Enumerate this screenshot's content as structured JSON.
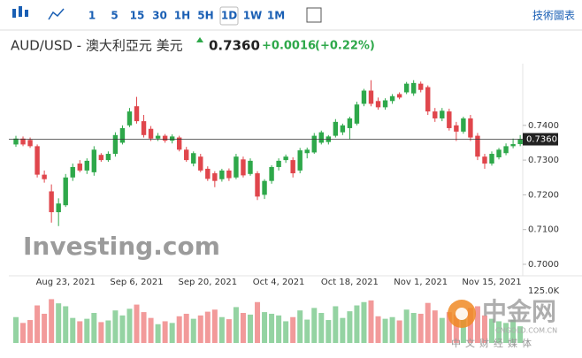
{
  "toolbar": {
    "intervals": [
      "1",
      "5",
      "15",
      "30",
      "1H",
      "5H",
      "1D",
      "1W",
      "1M"
    ],
    "active": "1D",
    "right": "技術圖表"
  },
  "header": {
    "title": "AUD/USD - 澳大利亞元 美元",
    "price": "0.7360",
    "change": "+0.0016",
    "change_pct": "(+0.22%)"
  },
  "watermarks": {
    "logo": "Investing.com",
    "site": "中金网",
    "url": "CNGOLD.COM.CN",
    "tagline": "中文财经媒体"
  },
  "chart_data": {
    "type": "candlestick",
    "up_color": "#2ea84a",
    "down_color": "#e0464c",
    "volume_up_color": "#94d3a2",
    "volume_down_color": "#f29a9a",
    "categories": [
      null,
      null,
      null,
      null,
      null,
      null,
      null,
      "Aug 23, 2021",
      null,
      null,
      null,
      null,
      null,
      null,
      null,
      null,
      null,
      "Sep 6, 2021",
      null,
      null,
      null,
      null,
      null,
      null,
      null,
      null,
      null,
      "Sep 20, 2021",
      null,
      null,
      null,
      null,
      null,
      null,
      null,
      null,
      null,
      "Oct 4, 2021",
      null,
      null,
      null,
      null,
      null,
      null,
      null,
      null,
      null,
      "Oct 18, 2021",
      null,
      null,
      null,
      null,
      null,
      null,
      null,
      null,
      null,
      "Nov 1, 2021",
      null,
      null,
      null,
      null,
      null,
      null,
      null,
      null,
      null,
      "Nov 15, 2021",
      null,
      null,
      null,
      null
    ],
    "open": [
      0.7345,
      0.7362,
      0.7358,
      0.734,
      0.7258,
      0.721,
      0.715,
      0.717,
      0.725,
      0.729,
      0.727,
      0.7265,
      0.7315,
      0.73,
      0.7318,
      0.735,
      0.74,
      0.7455,
      0.7412,
      0.739,
      0.7362,
      0.737,
      0.7356,
      0.7365,
      0.733,
      0.729,
      0.731,
      0.7275,
      0.7262,
      0.7245,
      0.727,
      0.725,
      0.7302,
      0.726,
      0.7262,
      0.72,
      0.724,
      0.728,
      0.73,
      0.73,
      0.727,
      0.732,
      0.7322,
      0.735,
      0.7352,
      0.737,
      0.738,
      0.7392,
      0.7405,
      0.7462,
      0.75,
      0.747,
      0.7452,
      0.747,
      0.749,
      0.7495,
      0.7492,
      0.752,
      0.751,
      0.744,
      0.742,
      0.744,
      0.74,
      0.7382,
      0.742,
      0.737,
      0.731,
      0.729,
      0.7308,
      0.732,
      0.734,
      0.7346
    ],
    "high": [
      0.737,
      0.7368,
      0.7365,
      0.7345,
      0.727,
      0.723,
      0.719,
      0.726,
      0.729,
      0.73,
      0.7305,
      0.734,
      0.732,
      0.7325,
      0.738,
      0.74,
      0.745,
      0.7482,
      0.743,
      0.7398,
      0.7378,
      0.7375,
      0.7374,
      0.737,
      0.7338,
      0.7325,
      0.7318,
      0.7282,
      0.7268,
      0.7275,
      0.7276,
      0.7318,
      0.731,
      0.7305,
      0.7268,
      0.7245,
      0.7285,
      0.7305,
      0.7316,
      0.7308,
      0.7335,
      0.7336,
      0.7378,
      0.7385,
      0.7372,
      0.7418,
      0.7405,
      0.7425,
      0.7468,
      0.7505,
      0.753,
      0.748,
      0.7478,
      0.749,
      0.7495,
      0.7525,
      0.753,
      0.7526,
      0.7515,
      0.745,
      0.745,
      0.7448,
      0.741,
      0.7425,
      0.743,
      0.7378,
      0.7318,
      0.7325,
      0.7335,
      0.7348,
      0.7362,
      0.7372
    ],
    "low": [
      0.7338,
      0.734,
      0.7335,
      0.725,
      0.7235,
      0.712,
      0.711,
      0.7165,
      0.724,
      0.7265,
      0.726,
      0.7255,
      0.7295,
      0.7295,
      0.731,
      0.7345,
      0.7395,
      0.7405,
      0.7365,
      0.7355,
      0.7355,
      0.735,
      0.7348,
      0.7325,
      0.7295,
      0.7282,
      0.7265,
      0.724,
      0.7222,
      0.7238,
      0.724,
      0.7245,
      0.725,
      0.7255,
      0.7185,
      0.7188,
      0.7232,
      0.727,
      0.7292,
      0.725,
      0.7262,
      0.7305,
      0.7318,
      0.7345,
      0.7345,
      0.7365,
      0.7372,
      0.736,
      0.74,
      0.7455,
      0.7455,
      0.7445,
      0.7445,
      0.7462,
      0.7475,
      0.749,
      0.7485,
      0.7495,
      0.743,
      0.741,
      0.7412,
      0.7385,
      0.7355,
      0.7376,
      0.7355,
      0.73,
      0.7275,
      0.7284,
      0.7302,
      0.7314,
      0.7334,
      0.734
    ],
    "close": [
      0.7362,
      0.7345,
      0.734,
      0.7258,
      0.7245,
      0.715,
      0.7175,
      0.725,
      0.728,
      0.727,
      0.7298,
      0.733,
      0.73,
      0.7318,
      0.7372,
      0.7392,
      0.744,
      0.7412,
      0.7372,
      0.7362,
      0.737,
      0.7356,
      0.7368,
      0.733,
      0.73,
      0.732,
      0.727,
      0.7246,
      0.724,
      0.727,
      0.7248,
      0.731,
      0.7256,
      0.7298,
      0.7195,
      0.724,
      0.728,
      0.7298,
      0.731,
      0.7262,
      0.7328,
      0.733,
      0.737,
      0.738,
      0.7368,
      0.741,
      0.74,
      0.742,
      0.746,
      0.75,
      0.7462,
      0.7452,
      0.7472,
      0.7484,
      0.748,
      0.752,
      0.7522,
      0.7502,
      0.744,
      0.742,
      0.7442,
      0.7392,
      0.7382,
      0.742,
      0.7365,
      0.731,
      0.729,
      0.7318,
      0.733,
      0.734,
      0.7346,
      0.736
    ],
    "volume": [
      62000,
      48000,
      55000,
      90000,
      70000,
      105000,
      95000,
      88000,
      60000,
      52000,
      58000,
      72000,
      50000,
      54000,
      78000,
      66000,
      82000,
      92000,
      74000,
      60000,
      45000,
      52000,
      48000,
      64000,
      70000,
      58000,
      66000,
      75000,
      80000,
      62000,
      57000,
      86000,
      72000,
      68000,
      98000,
      74000,
      70000,
      66000,
      52000,
      62000,
      78000,
      56000,
      84000,
      72000,
      55000,
      88000,
      60000,
      76000,
      90000,
      98000,
      102000,
      64000,
      58000,
      62000,
      54000,
      80000,
      72000,
      70000,
      96000,
      78000,
      60000,
      74000,
      68000,
      72000,
      84000,
      88000,
      66000,
      58000,
      52000,
      48000,
      56000,
      40000
    ],
    "ylim": [
      0.6972,
      0.757
    ],
    "yticks": [
      {
        "value": 0.7,
        "label": "0.7000"
      },
      {
        "value": 0.71,
        "label": "0.7100"
      },
      {
        "value": 0.72,
        "label": "0.7200"
      },
      {
        "value": 0.73,
        "label": "0.7300"
      },
      {
        "value": 0.74,
        "label": "0.7400"
      }
    ],
    "last_price": {
      "value": 0.736,
      "label": "0.7360"
    },
    "volume_ylim": [
      0,
      125000
    ],
    "volume_yticks": [
      {
        "value": 125000,
        "label": "125.0K"
      }
    ]
  }
}
